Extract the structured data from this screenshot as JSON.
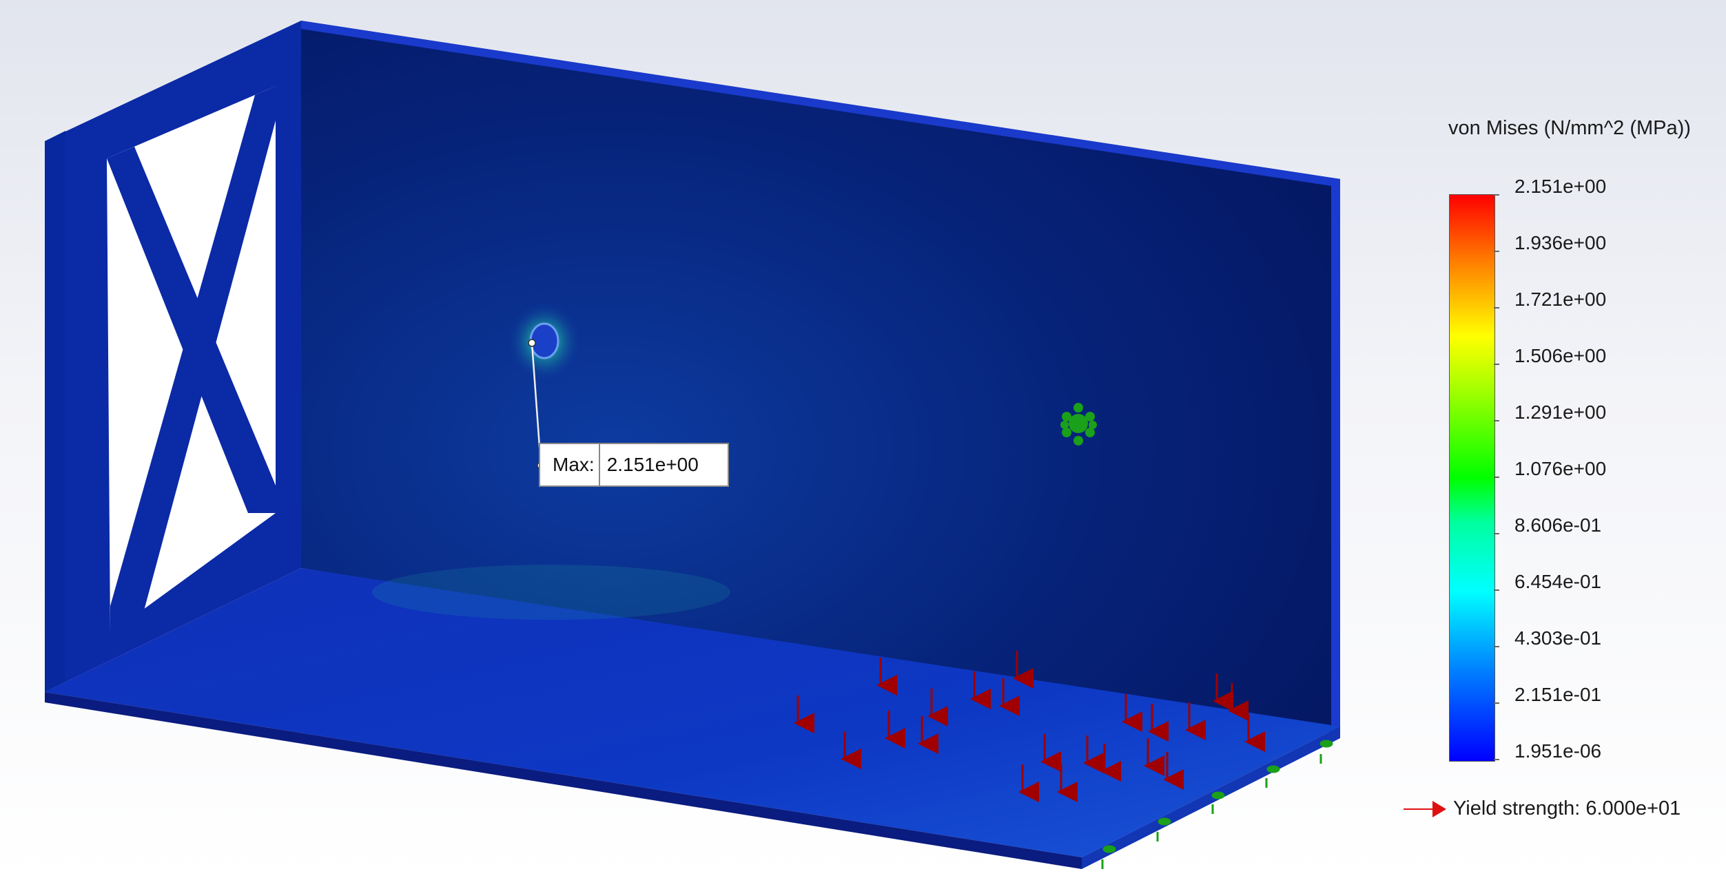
{
  "legend": {
    "title": "von Mises (N/mm^2 (MPa))",
    "values": [
      "2.151e+00",
      "1.936e+00",
      "1.721e+00",
      "1.506e+00",
      "1.291e+00",
      "1.076e+00",
      "8.606e-01",
      "6.454e-01",
      "4.303e-01",
      "2.151e-01",
      "1.951e-06"
    ],
    "colors": [
      "#ff0000",
      "#ff8000",
      "#ffff00",
      "#00ff00",
      "#00ffff",
      "#0000ff"
    ]
  },
  "yield": {
    "label": "Yield strength: 6.000e+01",
    "arrow_color": "#e01010"
  },
  "max_annotation": {
    "key": "Max:",
    "value": "2.151e+00"
  },
  "model": {
    "body_color": "#0a1f8f",
    "load_arrow_color": "#a00000",
    "fixture_color": "#1aa01a"
  }
}
